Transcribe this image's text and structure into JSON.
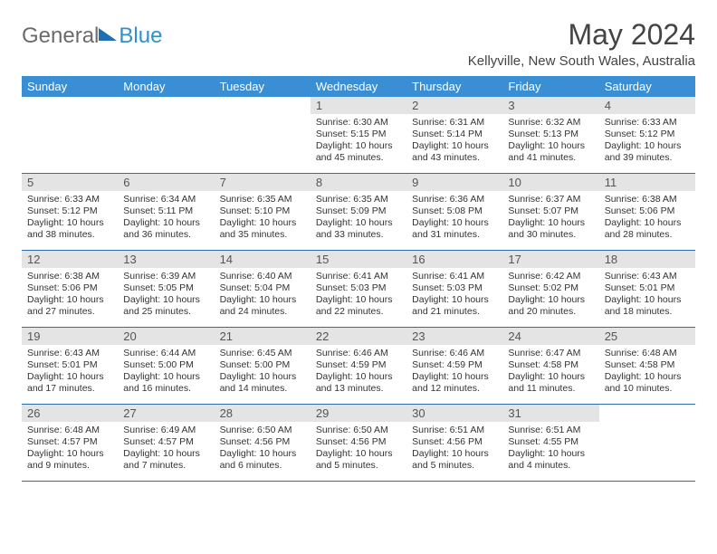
{
  "logo": {
    "part1": "General",
    "part2": "Blue"
  },
  "title": "May 2024",
  "location": "Kellyville, New South Wales, Australia",
  "colors": {
    "header_bg": "#3a8fd4",
    "header_text": "#ffffff",
    "daynum_bg": "#e4e4e4",
    "week_border": "#2f6da8",
    "logo_grey": "#6b6b6b",
    "logo_blue": "#2f8fcf"
  },
  "weekdays": [
    "Sunday",
    "Monday",
    "Tuesday",
    "Wednesday",
    "Thursday",
    "Friday",
    "Saturday"
  ],
  "leading_blank": 3,
  "days": [
    {
      "n": 1,
      "sr": "6:30 AM",
      "ss": "5:15 PM",
      "dl": "10 hours and 45 minutes."
    },
    {
      "n": 2,
      "sr": "6:31 AM",
      "ss": "5:14 PM",
      "dl": "10 hours and 43 minutes."
    },
    {
      "n": 3,
      "sr": "6:32 AM",
      "ss": "5:13 PM",
      "dl": "10 hours and 41 minutes."
    },
    {
      "n": 4,
      "sr": "6:33 AM",
      "ss": "5:12 PM",
      "dl": "10 hours and 39 minutes."
    },
    {
      "n": 5,
      "sr": "6:33 AM",
      "ss": "5:12 PM",
      "dl": "10 hours and 38 minutes."
    },
    {
      "n": 6,
      "sr": "6:34 AM",
      "ss": "5:11 PM",
      "dl": "10 hours and 36 minutes."
    },
    {
      "n": 7,
      "sr": "6:35 AM",
      "ss": "5:10 PM",
      "dl": "10 hours and 35 minutes."
    },
    {
      "n": 8,
      "sr": "6:35 AM",
      "ss": "5:09 PM",
      "dl": "10 hours and 33 minutes."
    },
    {
      "n": 9,
      "sr": "6:36 AM",
      "ss": "5:08 PM",
      "dl": "10 hours and 31 minutes."
    },
    {
      "n": 10,
      "sr": "6:37 AM",
      "ss": "5:07 PM",
      "dl": "10 hours and 30 minutes."
    },
    {
      "n": 11,
      "sr": "6:38 AM",
      "ss": "5:06 PM",
      "dl": "10 hours and 28 minutes."
    },
    {
      "n": 12,
      "sr": "6:38 AM",
      "ss": "5:06 PM",
      "dl": "10 hours and 27 minutes."
    },
    {
      "n": 13,
      "sr": "6:39 AM",
      "ss": "5:05 PM",
      "dl": "10 hours and 25 minutes."
    },
    {
      "n": 14,
      "sr": "6:40 AM",
      "ss": "5:04 PM",
      "dl": "10 hours and 24 minutes."
    },
    {
      "n": 15,
      "sr": "6:41 AM",
      "ss": "5:03 PM",
      "dl": "10 hours and 22 minutes."
    },
    {
      "n": 16,
      "sr": "6:41 AM",
      "ss": "5:03 PM",
      "dl": "10 hours and 21 minutes."
    },
    {
      "n": 17,
      "sr": "6:42 AM",
      "ss": "5:02 PM",
      "dl": "10 hours and 20 minutes."
    },
    {
      "n": 18,
      "sr": "6:43 AM",
      "ss": "5:01 PM",
      "dl": "10 hours and 18 minutes."
    },
    {
      "n": 19,
      "sr": "6:43 AM",
      "ss": "5:01 PM",
      "dl": "10 hours and 17 minutes."
    },
    {
      "n": 20,
      "sr": "6:44 AM",
      "ss": "5:00 PM",
      "dl": "10 hours and 16 minutes."
    },
    {
      "n": 21,
      "sr": "6:45 AM",
      "ss": "5:00 PM",
      "dl": "10 hours and 14 minutes."
    },
    {
      "n": 22,
      "sr": "6:46 AM",
      "ss": "4:59 PM",
      "dl": "10 hours and 13 minutes."
    },
    {
      "n": 23,
      "sr": "6:46 AM",
      "ss": "4:59 PM",
      "dl": "10 hours and 12 minutes."
    },
    {
      "n": 24,
      "sr": "6:47 AM",
      "ss": "4:58 PM",
      "dl": "10 hours and 11 minutes."
    },
    {
      "n": 25,
      "sr": "6:48 AM",
      "ss": "4:58 PM",
      "dl": "10 hours and 10 minutes."
    },
    {
      "n": 26,
      "sr": "6:48 AM",
      "ss": "4:57 PM",
      "dl": "10 hours and 9 minutes."
    },
    {
      "n": 27,
      "sr": "6:49 AM",
      "ss": "4:57 PM",
      "dl": "10 hours and 7 minutes."
    },
    {
      "n": 28,
      "sr": "6:50 AM",
      "ss": "4:56 PM",
      "dl": "10 hours and 6 minutes."
    },
    {
      "n": 29,
      "sr": "6:50 AM",
      "ss": "4:56 PM",
      "dl": "10 hours and 5 minutes."
    },
    {
      "n": 30,
      "sr": "6:51 AM",
      "ss": "4:56 PM",
      "dl": "10 hours and 5 minutes."
    },
    {
      "n": 31,
      "sr": "6:51 AM",
      "ss": "4:55 PM",
      "dl": "10 hours and 4 minutes."
    }
  ],
  "labels": {
    "sunrise": "Sunrise:",
    "sunset": "Sunset:",
    "daylight": "Daylight:"
  }
}
